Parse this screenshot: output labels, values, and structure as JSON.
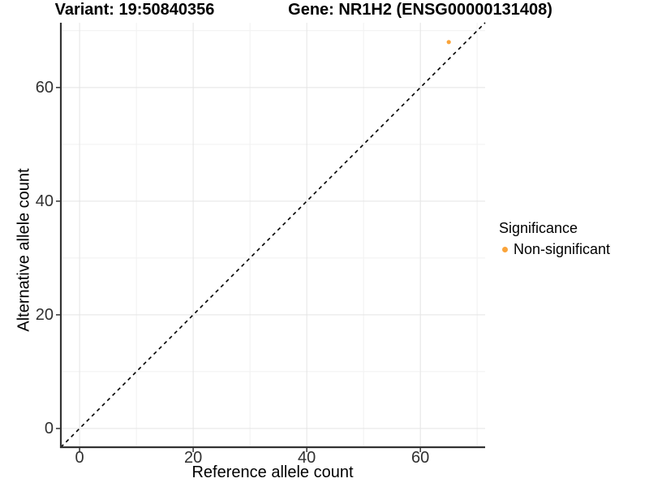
{
  "chart_data": {
    "type": "scatter",
    "title_left": "Variant: 19:50840356",
    "title_right": "Gene: NR1H2 (ENSG00000131408)",
    "xlabel": "Reference allele count",
    "ylabel": "Alternative allele count",
    "xlim": [
      -3.3,
      71.4
    ],
    "ylim": [
      -3.3,
      71.4
    ],
    "x_ticks": [
      0,
      20,
      40,
      60
    ],
    "y_ticks": [
      0,
      20,
      40,
      60
    ],
    "x_minor_ticks": [
      10,
      30,
      50,
      70
    ],
    "y_minor_ticks": [
      10,
      30,
      50,
      70
    ],
    "grid": "major and minor, light gray, on white background",
    "points": [
      {
        "x": 65,
        "y": 68,
        "series": "Non-significant"
      }
    ],
    "reference_line": {
      "kind": "identity y=x",
      "style": "dashed",
      "color": "#000000"
    },
    "legend": {
      "title": "Significance",
      "position": "right",
      "items": [
        {
          "label": "Non-significant",
          "color": "#FAA43A"
        }
      ]
    }
  },
  "colors": {
    "point": "#FAA43A",
    "axis_line": "#333333",
    "tick_label": "#303030",
    "grid_major": "#e4e4e4",
    "grid_minor": "#f1f1f1",
    "background": "#ffffff"
  }
}
